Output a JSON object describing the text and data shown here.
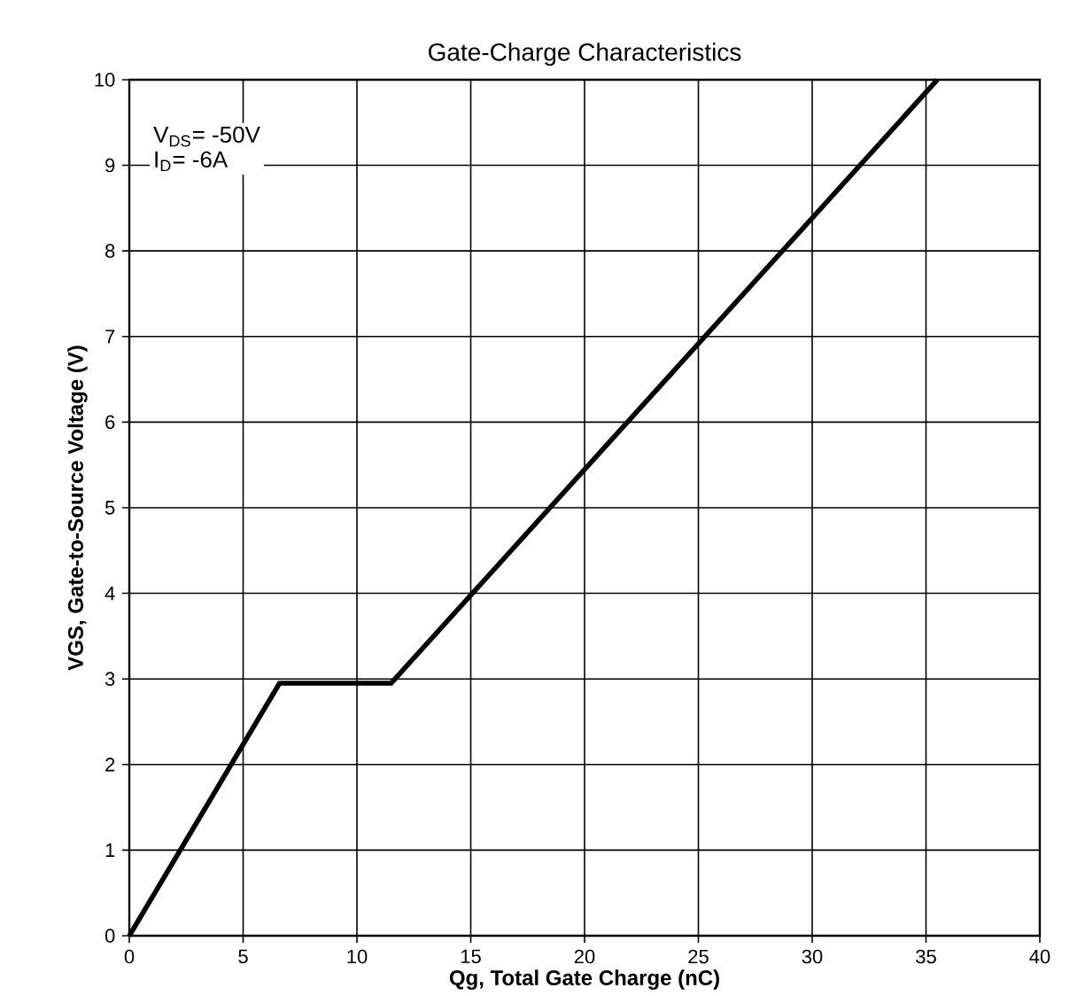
{
  "chart_data": {
    "type": "line",
    "title": "Gate-Charge Characteristics",
    "xlabel": "Qg, Total Gate Charge (nC)",
    "ylabel": "VGS, Gate-to-Source Voltage (V)",
    "x": [
      0,
      6.6,
      11.5,
      35.5
    ],
    "series": [
      {
        "color": "#000000",
        "values": [
          0,
          2.95,
          2.95,
          10
        ]
      }
    ],
    "xlim": [
      0,
      40
    ],
    "ylim": [
      0,
      10
    ],
    "xticks": [
      0,
      5,
      10,
      15,
      20,
      25,
      30,
      35,
      40
    ],
    "yticks": [
      0,
      1,
      2,
      3,
      4,
      5,
      6,
      7,
      8,
      9,
      10
    ],
    "grid": true,
    "marker": "none",
    "line_style": "solid",
    "annotations": [
      "V$_{DS}$= -50V",
      "I$_{D}$= -6A"
    ]
  }
}
